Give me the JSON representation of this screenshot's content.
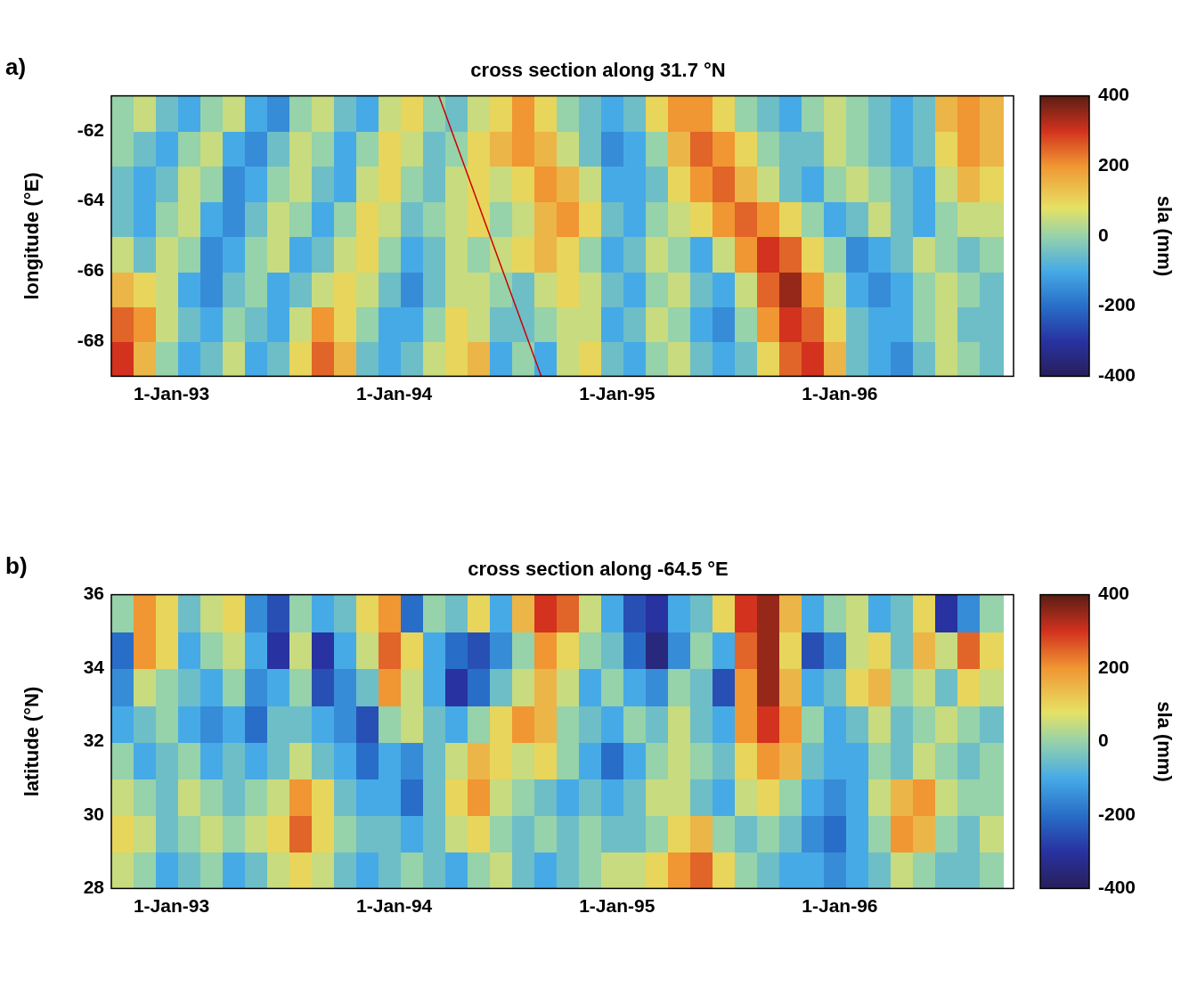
{
  "chart_data": [
    {
      "type": "heatmap",
      "panel_label": "a)",
      "title": "cross section along 31.7 °N",
      "y_label": "longitude (°E)",
      "x": [
        1992.78,
        1992.88,
        1992.98,
        1993.08,
        1993.18,
        1993.28,
        1993.38,
        1993.48,
        1993.58,
        1993.68,
        1993.78,
        1993.88,
        1993.98,
        1994.08,
        1994.18,
        1994.28,
        1994.38,
        1994.48,
        1994.58,
        1994.68,
        1994.78,
        1994.88,
        1994.98,
        1995.08,
        1995.18,
        1995.28,
        1995.38,
        1995.48,
        1995.58,
        1995.68,
        1995.78,
        1995.88,
        1995.98,
        1996.08,
        1996.18,
        1996.28,
        1996.38,
        1996.48,
        1996.58,
        1996.68
      ],
      "y": [
        -68.5,
        -67.5,
        -66.5,
        -65.5,
        -64.5,
        -63.5,
        -62.5,
        -61.5
      ],
      "cells": [
        [
          300,
          150,
          0,
          -100,
          -50,
          50,
          -100,
          -50,
          100,
          250,
          150,
          -50,
          -100,
          -50,
          50,
          100,
          150,
          -100,
          0,
          -100,
          50,
          100,
          -50,
          -100,
          0,
          50,
          -50,
          -100,
          -50,
          100,
          250,
          300,
          150,
          -50,
          -100,
          -150,
          -50,
          50,
          0,
          -50
        ],
        [
          250,
          200,
          50,
          -50,
          -100,
          0,
          -50,
          -100,
          50,
          200,
          100,
          0,
          -100,
          -100,
          0,
          100,
          50,
          -50,
          -50,
          0,
          50,
          50,
          -100,
          -50,
          50,
          0,
          -100,
          -150,
          0,
          200,
          300,
          250,
          100,
          -50,
          -100,
          -100,
          0,
          50,
          -50,
          -50
        ],
        [
          150,
          100,
          50,
          -100,
          -150,
          -50,
          0,
          -100,
          -50,
          50,
          100,
          50,
          -50,
          -150,
          -50,
          50,
          50,
          0,
          -50,
          50,
          100,
          50,
          -50,
          -100,
          0,
          50,
          -50,
          -100,
          50,
          250,
          350,
          200,
          50,
          -100,
          -150,
          -100,
          0,
          50,
          0,
          -50
        ],
        [
          50,
          -50,
          50,
          0,
          -150,
          -100,
          0,
          50,
          -100,
          -50,
          50,
          100,
          0,
          -100,
          -50,
          50,
          0,
          50,
          100,
          150,
          100,
          0,
          -100,
          -50,
          50,
          0,
          -100,
          50,
          200,
          300,
          250,
          100,
          0,
          -150,
          -100,
          -50,
          50,
          0,
          -50,
          0
        ],
        [
          -50,
          -100,
          0,
          50,
          -100,
          -150,
          -50,
          50,
          0,
          -100,
          0,
          100,
          50,
          -50,
          0,
          50,
          100,
          0,
          50,
          150,
          200,
          100,
          -50,
          -100,
          0,
          50,
          100,
          200,
          250,
          200,
          100,
          0,
          -100,
          -50,
          50,
          -50,
          -100,
          0,
          50,
          50
        ],
        [
          -50,
          -100,
          -50,
          50,
          0,
          -150,
          -100,
          0,
          50,
          -50,
          -100,
          50,
          100,
          0,
          -50,
          50,
          100,
          50,
          100,
          200,
          150,
          50,
          -100,
          -100,
          -50,
          100,
          200,
          250,
          150,
          50,
          -50,
          -100,
          0,
          50,
          0,
          -50,
          -100,
          50,
          150,
          100
        ],
        [
          0,
          -50,
          -100,
          0,
          50,
          -100,
          -150,
          -50,
          50,
          0,
          -100,
          0,
          100,
          50,
          -50,
          0,
          100,
          150,
          200,
          150,
          50,
          -50,
          -150,
          -100,
          0,
          150,
          250,
          200,
          100,
          0,
          -50,
          -50,
          50,
          0,
          -50,
          -100,
          -50,
          100,
          200,
          150
        ],
        [
          0,
          50,
          -50,
          -100,
          0,
          50,
          -100,
          -150,
          0,
          50,
          -50,
          -100,
          50,
          100,
          0,
          -50,
          50,
          100,
          200,
          100,
          0,
          -50,
          -100,
          -50,
          100,
          200,
          200,
          100,
          0,
          -50,
          -100,
          0,
          50,
          0,
          -50,
          -100,
          -50,
          150,
          200,
          150
        ]
      ],
      "xlim": [
        1992.73,
        1996.78
      ],
      "xticks": [
        {
          "value": 1993,
          "label": "1-Jan-93"
        },
        {
          "value": 1994,
          "label": "1-Jan-94"
        },
        {
          "value": 1995,
          "label": "1-Jan-95"
        },
        {
          "value": 1996,
          "label": "1-Jan-96"
        }
      ],
      "ylim": [
        -69,
        -61
      ],
      "yticks": [
        -68,
        -66,
        -64,
        -62
      ],
      "colorbar": {
        "label": "sla (mm)",
        "range": [
          -400,
          400
        ],
        "ticks": [
          -400,
          -200,
          0,
          200,
          400
        ]
      },
      "reference_line": {
        "x": [
          1994.2,
          1994.66
        ],
        "y": [
          -61,
          -69
        ],
        "color": "#cc0000"
      }
    },
    {
      "type": "heatmap",
      "panel_label": "b)",
      "title": "cross section along -64.5 °E",
      "y_label": "latitude (°N)",
      "x": [
        1992.78,
        1992.88,
        1992.98,
        1993.08,
        1993.18,
        1993.28,
        1993.38,
        1993.48,
        1993.58,
        1993.68,
        1993.78,
        1993.88,
        1993.98,
        1994.08,
        1994.18,
        1994.28,
        1994.38,
        1994.48,
        1994.58,
        1994.68,
        1994.78,
        1994.88,
        1994.98,
        1995.08,
        1995.18,
        1995.28,
        1995.38,
        1995.48,
        1995.58,
        1995.68,
        1995.78,
        1995.88,
        1995.98,
        1996.08,
        1996.18,
        1996.28,
        1996.38,
        1996.48,
        1996.58,
        1996.68
      ],
      "y": [
        28.5,
        29.5,
        30.5,
        31.5,
        32.5,
        33.5,
        34.5,
        35.5
      ],
      "cells": [
        [
          50,
          0,
          -100,
          -50,
          0,
          -100,
          -50,
          50,
          100,
          50,
          -50,
          -100,
          -50,
          0,
          -50,
          -100,
          0,
          50,
          -50,
          -100,
          -50,
          0,
          50,
          50,
          100,
          200,
          250,
          100,
          0,
          -50,
          -100,
          -100,
          -150,
          -100,
          -50,
          50,
          0,
          -50,
          -50,
          0
        ],
        [
          100,
          50,
          -50,
          0,
          50,
          0,
          50,
          100,
          250,
          100,
          0,
          -50,
          -50,
          -100,
          -50,
          50,
          100,
          0,
          -50,
          0,
          -50,
          0,
          -50,
          -50,
          0,
          100,
          150,
          0,
          -50,
          0,
          -50,
          -150,
          -200,
          -100,
          0,
          200,
          150,
          0,
          -50,
          50
        ],
        [
          50,
          0,
          -50,
          50,
          0,
          -50,
          0,
          50,
          200,
          100,
          -50,
          -100,
          -100,
          -200,
          -50,
          100,
          200,
          50,
          0,
          -50,
          -100,
          -50,
          -100,
          -50,
          50,
          50,
          -50,
          -100,
          50,
          100,
          0,
          -100,
          -150,
          -100,
          50,
          150,
          200,
          50,
          0,
          0
        ],
        [
          0,
          -100,
          -50,
          0,
          -100,
          -50,
          -100,
          -50,
          50,
          -50,
          -100,
          -200,
          -100,
          -150,
          -50,
          50,
          150,
          100,
          50,
          100,
          0,
          -100,
          -200,
          -100,
          0,
          50,
          0,
          -50,
          100,
          200,
          150,
          -50,
          -100,
          -100,
          0,
          -50,
          50,
          0,
          -50,
          0
        ],
        [
          -100,
          -50,
          0,
          -100,
          -150,
          -100,
          -200,
          -50,
          -50,
          -100,
          -150,
          -250,
          0,
          50,
          -50,
          -100,
          0,
          100,
          200,
          150,
          0,
          -50,
          -100,
          0,
          -50,
          50,
          -50,
          -100,
          200,
          300,
          200,
          0,
          -100,
          -50,
          50,
          -50,
          0,
          50,
          0,
          -50
        ],
        [
          -150,
          50,
          0,
          -50,
          -100,
          0,
          -150,
          -100,
          0,
          -250,
          -150,
          -50,
          200,
          50,
          -100,
          -300,
          -200,
          -50,
          50,
          150,
          50,
          -100,
          0,
          -100,
          -150,
          0,
          -50,
          -250,
          200,
          350,
          150,
          -100,
          -50,
          100,
          150,
          0,
          50,
          -50,
          100,
          50
        ],
        [
          -200,
          200,
          100,
          -100,
          0,
          50,
          -100,
          -300,
          50,
          -300,
          -100,
          50,
          250,
          100,
          -100,
          -200,
          -250,
          -150,
          0,
          200,
          100,
          0,
          -50,
          -200,
          -350,
          -150,
          0,
          -100,
          250,
          350,
          100,
          -250,
          -150,
          50,
          100,
          -50,
          150,
          50,
          250,
          100
        ],
        [
          0,
          200,
          100,
          -50,
          50,
          100,
          -150,
          -250,
          0,
          -100,
          -50,
          100,
          200,
          -200,
          0,
          -50,
          100,
          -100,
          150,
          300,
          250,
          50,
          -100,
          -250,
          -300,
          -100,
          -50,
          100,
          300,
          350,
          150,
          -100,
          0,
          50,
          -100,
          -50,
          100,
          -300,
          -150,
          0
        ]
      ],
      "xlim": [
        1992.73,
        1996.78
      ],
      "xticks": [
        {
          "value": 1993,
          "label": "1-Jan-93"
        },
        {
          "value": 1994,
          "label": "1-Jan-94"
        },
        {
          "value": 1995,
          "label": "1-Jan-95"
        },
        {
          "value": 1996,
          "label": "1-Jan-96"
        }
      ],
      "ylim": [
        28,
        36
      ],
      "yticks": [
        28,
        30,
        32,
        34,
        36
      ],
      "colorbar": {
        "label": "sla (mm)",
        "range": [
          -400,
          400
        ],
        "ticks": [
          -400,
          -200,
          0,
          200,
          400
        ]
      }
    }
  ]
}
